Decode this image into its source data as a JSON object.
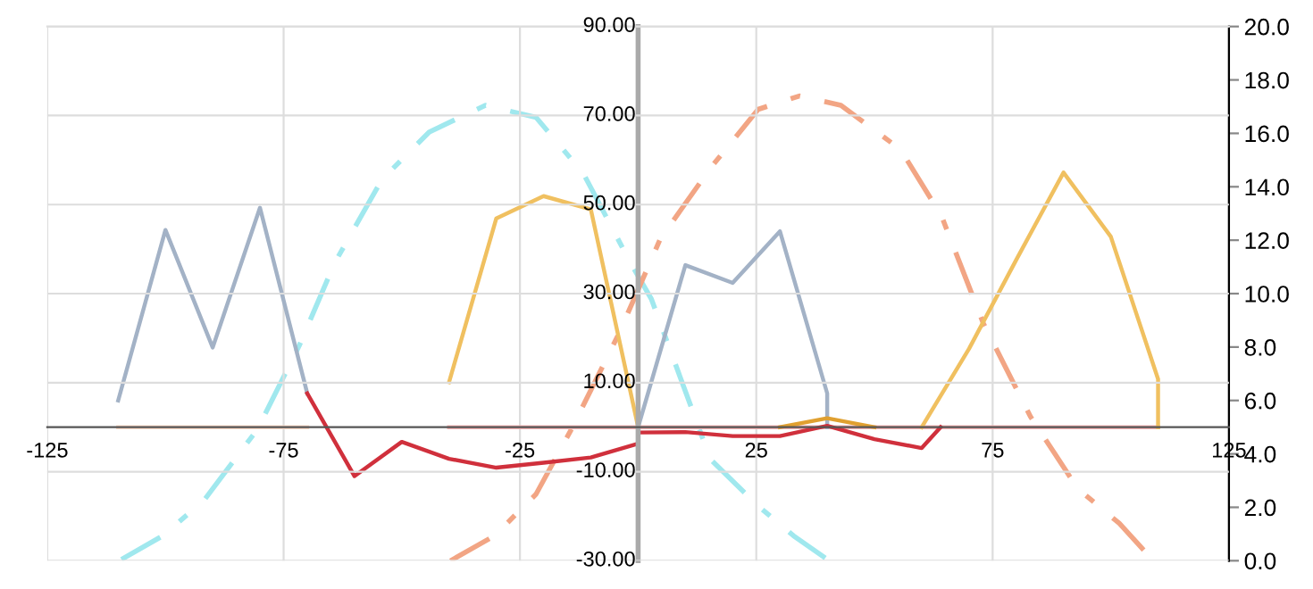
{
  "chart_data": {
    "type": "line",
    "xlim": [
      -125,
      125
    ],
    "xticks": [
      -125,
      -75,
      -25,
      25,
      75,
      125
    ],
    "ylim": [
      -30,
      90
    ],
    "yticks": [
      {
        "value": -30,
        "label": "-30.00"
      },
      {
        "value": -10,
        "label": "-10.00"
      },
      {
        "value": 10,
        "label": "10.00"
      },
      {
        "value": 30,
        "label": "30.00"
      },
      {
        "value": 50,
        "label": "50.00"
      },
      {
        "value": 70,
        "label": "70.00"
      },
      {
        "value": 90,
        "label": "90.00"
      }
    ],
    "y2lim": [
      0,
      20
    ],
    "y2ticks": [
      {
        "value": 0,
        "label": "0.0"
      },
      {
        "value": 2,
        "label": "2.0"
      },
      {
        "value": 4,
        "label": "4.0"
      },
      {
        "value": 6,
        "label": "6.0"
      },
      {
        "value": 8,
        "label": "8.0"
      },
      {
        "value": 10,
        "label": "10.0"
      },
      {
        "value": 12,
        "label": "12.0"
      },
      {
        "value": 14,
        "label": "14.0"
      },
      {
        "value": 16,
        "label": "16.0"
      },
      {
        "value": 18,
        "label": "18.0"
      },
      {
        "value": 20,
        "label": "20.0"
      }
    ],
    "grid": true,
    "legend": false,
    "marker": "none",
    "line_style": "solid",
    "series": [
      {
        "color": "#fbd9c6",
        "x": [
          -110,
          -70
        ],
        "values": [
          0,
          0
        ]
      },
      {
        "color": "#f7b3b3",
        "x": [
          -40,
          110
        ],
        "values": [
          0,
          0
        ]
      },
      {
        "color": "#a3b2c6",
        "x": [
          -110,
          -100,
          -90,
          -80,
          -70
        ],
        "values": [
          6.0,
          44.3,
          17.9,
          49.3,
          7.6
        ]
      },
      {
        "color": "#a3b2c6",
        "x": [
          0,
          10,
          20,
          30,
          40,
          40
        ],
        "values": [
          0,
          36.4,
          32.4,
          44.0,
          7.6,
          0
        ]
      },
      {
        "color": "#f0c060",
        "x": [
          -40,
          -30,
          -20,
          -10,
          0
        ],
        "values": [
          10.1,
          46.9,
          51.9,
          48.9,
          0
        ]
      },
      {
        "color": "#e0a030",
        "x": [
          30,
          40,
          50
        ],
        "values": [
          0,
          2.0,
          0
        ]
      },
      {
        "color": "#f0c060",
        "x": [
          60,
          70,
          80,
          90,
          100,
          110,
          110
        ],
        "values": [
          0,
          17.6,
          37.6,
          57.2,
          42.8,
          10.8,
          0
        ]
      },
      {
        "color": "#d0303c",
        "x": [
          -70,
          -60,
          -50,
          -40,
          -30,
          -20,
          -10,
          0,
          0,
          10,
          20,
          30,
          40,
          50,
          60,
          64
        ],
        "values": [
          7.6,
          -11.0,
          -3.3,
          -7.1,
          -9.1,
          -8.0,
          -6.8,
          -3.7,
          -1.2,
          -1.1,
          -2.0,
          -2.0,
          0.3,
          -2.7,
          -4.7,
          0
        ]
      },
      {
        "color": "#a0e8ee",
        "axis": "y2",
        "line_style": "dashed",
        "x": [
          -109.3,
          -100.6,
          -91.8,
          -80.5,
          -71.7,
          -64.2,
          -54.2,
          -44.2,
          -32.3,
          -21.6,
          -11.6,
          -1.6,
          2.8,
          15.3,
          25.4,
          32.9,
          40.4
        ],
        "values": [
          0.05,
          0.93,
          2.27,
          4.93,
          8.05,
          11.15,
          14.27,
          16.05,
          17.05,
          16.6,
          14.5,
          11.15,
          9.8,
          3.8,
          2.05,
          0.93,
          0
        ]
      },
      {
        "color": "#f2a584",
        "axis": "y2",
        "line_style": "dashed",
        "x": [
          -39.7,
          -30.4,
          -21.6,
          -14.1,
          -4.1,
          4.7,
          15.3,
          25.4,
          34.1,
          42.9,
          55.5,
          64.2,
          73,
          83,
          93,
          101.8,
          108
        ],
        "values": [
          0,
          0.93,
          2.49,
          4.93,
          8.49,
          12.05,
          14.7,
          16.9,
          17.4,
          17.05,
          15.4,
          12.9,
          8.9,
          5.4,
          2.7,
          1.4,
          0.2
        ]
      }
    ]
  }
}
